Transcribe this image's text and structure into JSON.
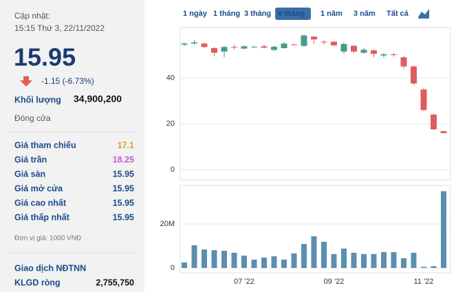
{
  "panel": {
    "updated_label": "Cập nhật:",
    "updated_time": "15:15 Thứ 3, 22/11/2022",
    "price": "15.95",
    "change": "-1.15 (-6.73%)",
    "volume_label": "Khối lượng",
    "volume": "34,900,200",
    "status": "Đóng cửa",
    "rows": [
      {
        "label": "Giá tham chiếu",
        "value": "17.1",
        "color": "#e8961c"
      },
      {
        "label": "Giá trần",
        "value": "18.25",
        "color": "#c658d8"
      },
      {
        "label": "Giá sàn",
        "value": "15.95",
        "color": "#1a4b8c"
      },
      {
        "label": "Giá mở cửa",
        "value": "15.95",
        "color": "#1a4b8c"
      },
      {
        "label": "Giá cao nhất",
        "value": "15.95",
        "color": "#1a4b8c"
      },
      {
        "label": "Giá thấp nhất",
        "value": "15.95",
        "color": "#1a4b8c"
      }
    ],
    "unit": "Đơn vị giá: 1000 VNĐ",
    "foreign_title": "Giao dịch NĐTNN",
    "net_label": "KLGD ròng",
    "net_value": "2,755,750"
  },
  "tabs": {
    "items": [
      "1 ngày",
      "1 tháng",
      "3 tháng",
      "6 tháng",
      "1 năm",
      "3 năm",
      "Tất cả"
    ],
    "active": 3
  },
  "chart_data": [
    {
      "type": "candlestick",
      "up_color": "#4a9a8a",
      "down_color": "#e05c5c",
      "ylim": [
        -4.5,
        62
      ],
      "yticks": [
        0,
        20,
        40
      ],
      "grid": true,
      "categories": [
        null,
        null,
        null,
        null,
        null,
        null,
        null,
        null,
        null,
        null,
        null,
        null,
        null,
        null,
        null,
        null,
        null,
        null,
        null,
        null,
        null,
        null,
        null,
        null,
        null,
        null,
        null
      ],
      "open": [
        54.5,
        55,
        55,
        53,
        51.5,
        53.5,
        52.8,
        53.3,
        53.8,
        52.2,
        53,
        54.6,
        54,
        58,
        55.8,
        55.8,
        51.5,
        54,
        51,
        52,
        49.8,
        50.3,
        49,
        45,
        35,
        24,
        16.8
      ],
      "high": [
        55.5,
        56.5,
        55.5,
        53.5,
        54,
        54.5,
        54.3,
        54,
        54.5,
        54,
        55.5,
        55,
        59,
        58.3,
        56.5,
        56,
        55.5,
        54.2,
        53,
        52.5,
        51,
        50.8,
        49.5,
        45.5,
        35.5,
        24.5,
        17.1
      ],
      "low": [
        54,
        54.5,
        53,
        49.5,
        49,
        52.5,
        52.5,
        53,
        52.8,
        51.8,
        52.8,
        54.2,
        53.5,
        55,
        54.5,
        53.8,
        50.5,
        51,
        50.5,
        49,
        48.8,
        49.3,
        44,
        37,
        25.5,
        17.2,
        15.95
      ],
      "close": [
        55,
        55.5,
        53.5,
        51,
        53.5,
        53.3,
        53.8,
        53.6,
        53.2,
        53.6,
        55,
        54.5,
        58.5,
        56.8,
        55.6,
        54.2,
        54.8,
        51.5,
        52.3,
        50.5,
        50.3,
        50,
        45,
        37.6,
        26,
        17.6,
        15.95
      ]
    },
    {
      "type": "bar",
      "color": "#5b8fb0",
      "ylim": [
        -2200000,
        37500000
      ],
      "yticks": [
        0,
        {
          "value": 20000000,
          "label": "20M"
        }
      ],
      "grid": true,
      "categories": [
        null,
        null,
        null,
        null,
        null,
        null,
        "07 '22",
        null,
        null,
        null,
        null,
        null,
        null,
        null,
        null,
        "09 '22",
        null,
        null,
        null,
        null,
        null,
        null,
        null,
        null,
        "11 '22",
        null,
        null
      ],
      "values": [
        2500000,
        10300000,
        8400000,
        8100000,
        7800000,
        6900000,
        5600000,
        3800000,
        4700000,
        5300000,
        3800000,
        6600000,
        10900000,
        14400000,
        11900000,
        6300000,
        8800000,
        6900000,
        6300000,
        6300000,
        7200000,
        7200000,
        4400000,
        6900000,
        500000,
        800000,
        34900200
      ]
    }
  ]
}
